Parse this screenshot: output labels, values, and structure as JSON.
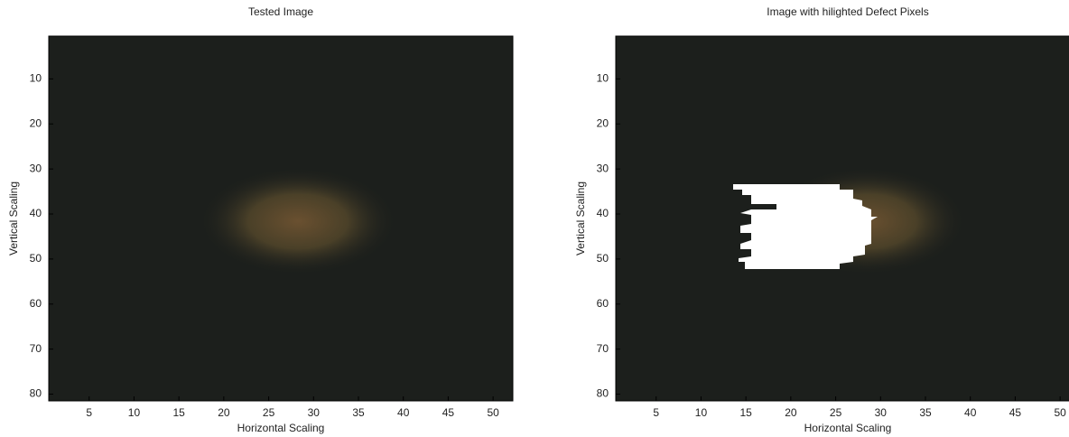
{
  "chart_data": [
    {
      "type": "image",
      "title": "Tested Image",
      "xlabel": "Horizontal Scaling",
      "ylabel": "Vertical Scaling",
      "xlim": [
        0.5,
        52.2
      ],
      "ylim": [
        0.5,
        81.5
      ],
      "xticks": [
        5,
        10,
        15,
        20,
        25,
        30,
        35,
        40,
        45,
        50
      ],
      "yticks": [
        10,
        20,
        30,
        40,
        50,
        60,
        70,
        80
      ]
    },
    {
      "type": "image",
      "title": "Image with hilighted Defect Pixels",
      "xlabel": "Horizontal Scaling",
      "ylabel": "Vertical Scaling",
      "xlim": [
        0.5,
        52.2
      ],
      "ylim": [
        0.5,
        81.5
      ],
      "xticks": [
        5,
        10,
        15,
        20,
        25,
        30,
        35,
        40,
        45,
        50
      ],
      "yticks": [
        10,
        20,
        30,
        40,
        50,
        60,
        70,
        80
      ]
    }
  ]
}
